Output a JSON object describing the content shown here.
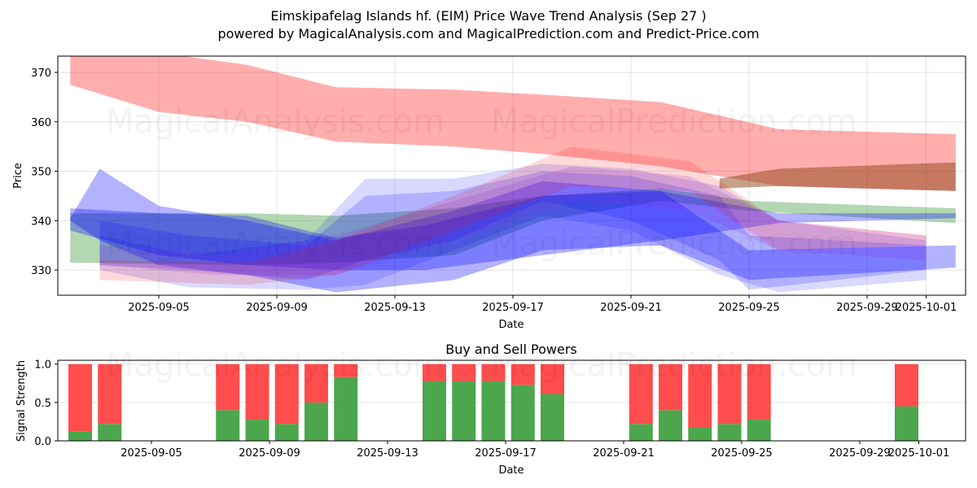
{
  "header": {
    "title": "Eimskipafelag Islands hf. (EIM) Price Wave Trend Analysis (Sep 27 )",
    "subtitle": "powered by MagicalAnalysis.com and MagicalPrediction.com and Predict-Price.com"
  },
  "watermarks": [
    "MagicalAnalysis.com",
    "MagicalPrediction.com"
  ],
  "chart_data": [
    {
      "type": "area",
      "title": "",
      "xlabel": "Date",
      "ylabel": "Price",
      "x_range": [
        "2025-09-01T15:00",
        "2025-10-02T08:00"
      ],
      "ylim": [
        324.9,
        373.3
      ],
      "yticks": [
        330,
        340,
        350,
        360,
        370
      ],
      "xticks": [
        "2025-09-05",
        "2025-09-09",
        "2025-09-13",
        "2025-09-17",
        "2025-09-21",
        "2025-09-25",
        "2025-09-29",
        "2025-10-01"
      ],
      "grid": true,
      "series": [
        {
          "name": "red-upper-band",
          "color": "#ff0000",
          "opacity": 0.32,
          "x": [
            "2025-09-02",
            "2025-09-05",
            "2025-09-08",
            "2025-09-11",
            "2025-09-15",
            "2025-09-18",
            "2025-09-22",
            "2025-09-26",
            "2025-10-02"
          ],
          "upper": [
            376,
            374,
            371.5,
            367,
            366.5,
            365.5,
            364,
            358.5,
            357.5
          ],
          "lower": [
            367.5,
            362,
            360,
            356,
            355,
            353.5,
            351,
            347,
            346
          ]
        },
        {
          "name": "brown-band",
          "color": "#8b4513",
          "opacity": 0.5,
          "x": [
            "2025-09-24",
            "2025-09-26",
            "2025-10-02"
          ],
          "upper": [
            348.5,
            350.5,
            351.8
          ],
          "lower": [
            346.5,
            347,
            346
          ]
        },
        {
          "name": "green-band",
          "color": "#228b22",
          "opacity": 0.35,
          "x": [
            "2025-09-02",
            "2025-09-08",
            "2025-09-11",
            "2025-09-15",
            "2025-09-18",
            "2025-09-22",
            "2025-09-25",
            "2025-10-02"
          ],
          "upper": [
            341.5,
            341.5,
            341,
            342.5,
            345,
            346.5,
            344,
            342.5
          ],
          "lower": [
            331.5,
            331,
            331.5,
            333,
            340,
            344,
            342,
            339.5
          ]
        },
        {
          "name": "blue-band-main",
          "color": "#0000ff",
          "opacity": 0.3,
          "x": [
            "2025-09-02",
            "2025-09-05",
            "2025-09-08",
            "2025-09-11",
            "2025-09-14",
            "2025-09-18",
            "2025-09-22",
            "2025-09-26",
            "2025-10-02"
          ],
          "upper": [
            342.5,
            341.5,
            341,
            336.5,
            339,
            345,
            346,
            341.5,
            341.5
          ],
          "lower": [
            338,
            333,
            331,
            330,
            330,
            333,
            336,
            339.5,
            340.5
          ]
        },
        {
          "name": "blue-band-wave-1",
          "color": "#0000ff",
          "opacity": 0.3,
          "x": [
            "2025-09-02",
            "2025-09-03",
            "2025-09-05",
            "2025-09-08",
            "2025-09-11",
            "2025-09-15",
            "2025-09-18",
            "2025-09-22",
            "2025-09-25",
            "2025-10-02"
          ],
          "upper": [
            340.5,
            350.5,
            343,
            340,
            336,
            342,
            348,
            346,
            334,
            335
          ],
          "lower": [
            340,
            336,
            331,
            329,
            325.5,
            328,
            334,
            335,
            328,
            330.5
          ]
        },
        {
          "name": "blue-band-wave-2",
          "color": "#0000ff",
          "opacity": 0.18,
          "x": [
            "2025-09-03",
            "2025-09-06",
            "2025-09-10",
            "2025-09-12",
            "2025-09-15",
            "2025-09-18",
            "2025-09-21",
            "2025-09-24",
            "2025-09-25",
            "2025-10-01"
          ],
          "upper": [
            340,
            337,
            335,
            345,
            346,
            350,
            349,
            345,
            337,
            335
          ],
          "lower": [
            331,
            330,
            328,
            332,
            336,
            344,
            340,
            332,
            326,
            330
          ]
        },
        {
          "name": "blue-band-wave-3",
          "color": "#0000ff",
          "opacity": 0.15,
          "x": [
            "2025-09-03",
            "2025-09-06",
            "2025-09-10",
            "2025-09-12",
            "2025-09-15",
            "2025-09-18",
            "2025-09-21",
            "2025-09-24",
            "2025-09-26",
            "2025-10-01"
          ],
          "upper": [
            337,
            333,
            336,
            348.5,
            348.5,
            351.5,
            350.5,
            347,
            340,
            336
          ],
          "lower": [
            330,
            326.5,
            326,
            327,
            334,
            341,
            338,
            329,
            325.5,
            328
          ]
        },
        {
          "name": "purple-band-wave",
          "color": "#8a2be2",
          "opacity": 0.18,
          "x": [
            "2025-09-03",
            "2025-09-07",
            "2025-09-11",
            "2025-09-15",
            "2025-09-19",
            "2025-09-23",
            "2025-09-26",
            "2025-10-01"
          ],
          "upper": [
            335,
            333,
            337,
            344,
            351,
            349,
            340,
            337
          ],
          "lower": [
            331,
            329,
            329,
            336,
            344,
            342,
            334,
            332
          ]
        },
        {
          "name": "pink-band-wave",
          "color": "#ff0000",
          "opacity": 0.15,
          "x": [
            "2025-09-03",
            "2025-09-08",
            "2025-09-11",
            "2025-09-15",
            "2025-09-19",
            "2025-09-23",
            "2025-09-26",
            "2025-10-01"
          ],
          "upper": [
            332,
            331.5,
            336,
            345,
            355,
            352,
            340,
            337
          ],
          "lower": [
            328,
            327,
            329,
            338,
            347,
            346,
            334,
            335
          ]
        }
      ]
    },
    {
      "type": "bar",
      "title": "Buy and Sell Powers",
      "xlabel": "Date",
      "ylabel": "Signal Strength",
      "ylim": [
        0,
        1.05
      ],
      "yticks": [
        "0.0",
        "0.5",
        "1.0"
      ],
      "xticks": [
        "2025-09-05",
        "2025-09-09",
        "2025-09-13",
        "2025-09-17",
        "2025-09-21",
        "2025-09-25",
        "2025-09-29",
        "2025-10-01"
      ],
      "grid": true,
      "categories": [
        "2025-09-03",
        "2025-09-04",
        "2025-09-08",
        "2025-09-09",
        "2025-09-10",
        "2025-09-11",
        "2025-09-12",
        "2025-09-15",
        "2025-09-16",
        "2025-09-17",
        "2025-09-18",
        "2025-09-19",
        "2025-09-22",
        "2025-09-23",
        "2025-09-24",
        "2025-09-25",
        "2025-09-26",
        "2025-10-01"
      ],
      "series": [
        {
          "name": "Buy Power",
          "color": "#4ca64c",
          "values": [
            0.12,
            0.22,
            0.4,
            0.28,
            0.22,
            0.5,
            0.83,
            0.78,
            0.78,
            0.78,
            0.73,
            0.61,
            0.22,
            0.4,
            0.17,
            0.22,
            0.28,
            0.45
          ]
        },
        {
          "name": "Sell Power",
          "color": "#ff4c4c",
          "values": [
            0.88,
            0.78,
            0.6,
            0.72,
            0.78,
            0.5,
            0.17,
            0.22,
            0.22,
            0.22,
            0.27,
            0.39,
            0.78,
            0.6,
            0.83,
            0.78,
            0.72,
            0.55
          ]
        }
      ]
    }
  ]
}
